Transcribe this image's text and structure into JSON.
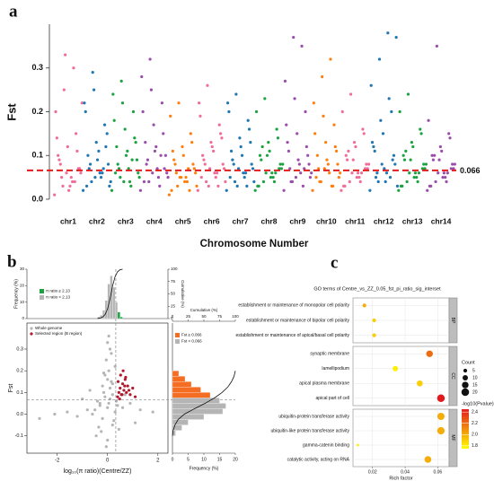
{
  "chart_data": [
    {
      "type": "manhattan",
      "panel": "a",
      "y_label": "Fst",
      "x_label": "Chromosome Number",
      "ylim": [
        0,
        0.4
      ],
      "yticks": [
        {
          "value": 0,
          "label": "0.0"
        },
        0.1,
        0.2,
        0.3
      ],
      "threshold": 0.066,
      "threshold_color": "#e31a1c",
      "series": [
        {
          "name": "chr1",
          "color": "#f06c9b",
          "values": [
            0.01,
            0.03,
            0.05,
            0.07,
            0.09,
            0.12,
            0.15,
            0.2,
            0.25,
            0.04,
            0.06,
            0.08,
            0.02,
            0.11,
            0.14,
            0.33,
            0.3,
            0.22,
            0.05,
            0.03,
            0.07,
            0.1,
            0.06,
            0.04
          ]
        },
        {
          "name": "chr2",
          "color": "#1f78b4",
          "values": [
            0.02,
            0.04,
            0.06,
            0.08,
            0.1,
            0.13,
            0.17,
            0.22,
            0.29,
            0.05,
            0.03,
            0.07,
            0.09,
            0.12,
            0.2,
            0.25,
            0.06,
            0.04,
            0.08,
            0.11,
            0.15,
            0.03,
            0.05,
            0.07
          ]
        },
        {
          "name": "chr3",
          "color": "#1aa340",
          "values": [
            0.02,
            0.05,
            0.07,
            0.09,
            0.12,
            0.16,
            0.2,
            0.24,
            0.27,
            0.04,
            0.06,
            0.08,
            0.1,
            0.14,
            0.18,
            0.22,
            0.03,
            0.05,
            0.07,
            0.11,
            0.13,
            0.06,
            0.04,
            0.09
          ]
        },
        {
          "name": "chr4",
          "color": "#9b4dab",
          "values": [
            0.02,
            0.04,
            0.07,
            0.1,
            0.13,
            0.17,
            0.22,
            0.28,
            0.32,
            0.05,
            0.06,
            0.08,
            0.11,
            0.15,
            0.2,
            0.25,
            0.03,
            0.05,
            0.09,
            0.12,
            0.07,
            0.04,
            0.06,
            0.1
          ]
        },
        {
          "name": "chr5",
          "color": "#ff7f0e",
          "values": [
            0.01,
            0.03,
            0.05,
            0.07,
            0.09,
            0.12,
            0.15,
            0.19,
            0.22,
            0.04,
            0.06,
            0.08,
            0.1,
            0.13,
            0.02,
            0.05,
            0.07,
            0.03,
            0.06,
            0.04,
            0.08,
            0.11,
            0.05,
            0.02
          ]
        },
        {
          "name": "chr6",
          "color": "#f06c9b",
          "values": [
            0.02,
            0.04,
            0.06,
            0.08,
            0.1,
            0.13,
            0.17,
            0.22,
            0.26,
            0.05,
            0.07,
            0.09,
            0.12,
            0.15,
            0.19,
            0.03,
            0.06,
            0.04,
            0.08,
            0.11,
            0.14,
            0.05,
            0.07,
            0.03
          ]
        },
        {
          "name": "chr7",
          "color": "#1f78b4",
          "values": [
            0.02,
            0.04,
            0.06,
            0.08,
            0.11,
            0.14,
            0.18,
            0.22,
            0.24,
            0.05,
            0.07,
            0.09,
            0.12,
            0.16,
            0.2,
            0.03,
            0.06,
            0.04,
            0.08,
            0.1,
            0.13,
            0.05,
            0.07,
            0.03
          ]
        },
        {
          "name": "chr8",
          "color": "#1aa340",
          "values": [
            0.02,
            0.04,
            0.06,
            0.08,
            0.1,
            0.13,
            0.16,
            0.2,
            0.23,
            0.05,
            0.07,
            0.09,
            0.11,
            0.14,
            0.03,
            0.06,
            0.04,
            0.08,
            0.12,
            0.05,
            0.07,
            0.03,
            0.1,
            0.06
          ]
        },
        {
          "name": "chr9",
          "color": "#9b4dab",
          "values": [
            0.02,
            0.04,
            0.06,
            0.08,
            0.11,
            0.15,
            0.2,
            0.27,
            0.37,
            0.35,
            0.05,
            0.07,
            0.09,
            0.12,
            0.17,
            0.23,
            0.03,
            0.06,
            0.04,
            0.08,
            0.1,
            0.13,
            0.05,
            0.07
          ]
        },
        {
          "name": "chr10",
          "color": "#ff7f0e",
          "values": [
            0.02,
            0.04,
            0.06,
            0.08,
            0.1,
            0.13,
            0.17,
            0.22,
            0.28,
            0.32,
            0.05,
            0.07,
            0.09,
            0.12,
            0.15,
            0.19,
            0.03,
            0.06,
            0.04,
            0.08,
            0.11,
            0.05,
            0.07,
            0.03
          ]
        },
        {
          "name": "chr11",
          "color": "#f06c9b",
          "values": [
            0.02,
            0.04,
            0.06,
            0.08,
            0.1,
            0.13,
            0.16,
            0.2,
            0.24,
            0.05,
            0.07,
            0.09,
            0.12,
            0.15,
            0.03,
            0.06,
            0.04,
            0.08,
            0.11,
            0.05,
            0.07,
            0.03,
            0.09,
            0.06
          ]
        },
        {
          "name": "chr12",
          "color": "#1f78b4",
          "values": [
            0.02,
            0.04,
            0.06,
            0.08,
            0.11,
            0.15,
            0.2,
            0.26,
            0.32,
            0.38,
            0.37,
            0.05,
            0.07,
            0.09,
            0.13,
            0.18,
            0.23,
            0.03,
            0.06,
            0.04,
            0.1,
            0.12,
            0.08,
            0.05
          ]
        },
        {
          "name": "chr13",
          "color": "#1aa340",
          "values": [
            0.02,
            0.04,
            0.06,
            0.08,
            0.1,
            0.13,
            0.16,
            0.2,
            0.24,
            0.05,
            0.07,
            0.09,
            0.12,
            0.15,
            0.03,
            0.06,
            0.04,
            0.08,
            0.11,
            0.05,
            0.07,
            0.03,
            0.09,
            0.06
          ]
        },
        {
          "name": "chr14",
          "color": "#9b4dab",
          "values": [
            0.02,
            0.04,
            0.06,
            0.08,
            0.1,
            0.12,
            0.15,
            0.18,
            0.35,
            0.05,
            0.07,
            0.09,
            0.11,
            0.14,
            0.03,
            0.06,
            0.04,
            0.08,
            0.1,
            0.05,
            0.07,
            0.03,
            0.09,
            0.06
          ]
        }
      ]
    },
    {
      "type": "scatter",
      "panel": "b",
      "x_label": "log₁₀(π ratio)(Centre/ZZ)",
      "y_label": "Fst",
      "xlim": [
        -3.2,
        2.4
      ],
      "xticks": [
        -2,
        0,
        2
      ],
      "ylim": [
        -0.18,
        0.42
      ],
      "yticks": [
        -0.1,
        {
          "value": 0,
          "label": "0.0"
        },
        0.1,
        0.2,
        0.3
      ],
      "log_pi_threshold": 0.328,
      "fst_threshold": 0.066,
      "series": [
        {
          "name": "Whole genome",
          "color": "#b5b5b5",
          "x": [
            -0.5,
            -0.3,
            -0.2,
            -0.1,
            0,
            0.1,
            0.2,
            0.3,
            -0.4,
            0.15,
            -0.25,
            0.05,
            -0.6,
            0.4,
            -0.15,
            0.25,
            -0.05,
            0.35,
            -0.35,
            0.1,
            -0.8,
            0.6,
            -1.2,
            0.9,
            -1.6,
            1.3,
            -2.1,
            1.8,
            -2.7,
            0,
            -0.1,
            0.2,
            -0.2,
            0.05,
            0.3,
            -0.3,
            0.1,
            -0.45,
            0.45,
            0,
            -0.05,
            0.15,
            -0.7,
            0.7,
            -1,
            1.1,
            0.2,
            -0.15,
            0.05,
            0
          ],
          "values": [
            0.02,
            0.05,
            -0.02,
            0.08,
            0.03,
            0.12,
            -0.05,
            0.01,
            0.06,
            0.15,
            -0.08,
            0.2,
            0,
            0.04,
            0.1,
            -0.03,
            0.25,
            0.06,
            -0.06,
            0.3,
            0.02,
            0.03,
            -0.01,
            0.05,
            0.01,
            0.02,
            0,
            0.01,
            -0.02,
            -0.12,
            0.18,
            0.09,
            0.13,
            0.36,
            0.22,
            0.04,
            0.07,
            -0.1,
            -0.07,
            0.16,
            -0.15,
            0.28,
            0.11,
            0.09,
            0.07,
            -0.04,
            0.14,
            0.19,
            0.05,
            0.33
          ]
        },
        {
          "name": "Selected region (B region)",
          "color": "#b2182b",
          "x": [
            0.4,
            0.45,
            0.5,
            0.55,
            0.6,
            0.65,
            0.7,
            0.75,
            0.8,
            0.9,
            1,
            1.1,
            0.42,
            0.52,
            0.62,
            0.72,
            0.85,
            0.48,
            0.58,
            0.68
          ],
          "values": [
            0.08,
            0.1,
            0.12,
            0.09,
            0.14,
            0.11,
            0.16,
            0.1,
            0.13,
            0.09,
            0.12,
            0.08,
            0.15,
            0.18,
            0.2,
            0.17,
            0.11,
            0.07,
            0.09,
            0.13
          ]
        }
      ],
      "top_hist": {
        "y_label": "Frequency (%)",
        "cumulative_label": "Cumulative (%)",
        "ylim": [
          0,
          30
        ],
        "yticks": [
          0,
          10,
          20,
          30
        ],
        "cumulative_lim": [
          0,
          100
        ],
        "cumulative_ticks": [
          0,
          25,
          50,
          75,
          100
        ],
        "bins": [
          -0.4,
          -0.3,
          -0.2,
          -0.1,
          0,
          0.1,
          0.2,
          0.3,
          0.4,
          0.5,
          0.6
        ],
        "values": [
          1,
          2,
          5,
          11,
          21,
          26,
          19,
          10,
          4,
          1
        ],
        "cumulative": [
          0,
          1,
          3,
          8,
          19,
          40,
          66,
          85,
          95,
          99,
          100
        ],
        "legend": [
          {
            "name": "π ratio ≥ 2.13",
            "color": "#1aa340"
          },
          {
            "name": "π ratio < 2.13",
            "color": "#b5b5b5"
          }
        ]
      },
      "right_hist": {
        "x_label": "Frequency (%)",
        "cumulative_label": "Cumulative (%)",
        "xlim": [
          0,
          20
        ],
        "xticks": [
          0,
          5,
          10,
          15,
          20
        ],
        "cumulative_lim": [
          0,
          100
        ],
        "cumulative_ticks": [
          0,
          25,
          50,
          75,
          100
        ],
        "bins": [
          -0.1,
          -0.075,
          -0.05,
          -0.025,
          0,
          0.025,
          0.05,
          0.075,
          0.1,
          0.125,
          0.15,
          0.175,
          0.2
        ],
        "values": [
          1,
          3,
          5,
          10,
          16,
          17,
          15,
          12,
          9,
          6,
          4,
          2
        ],
        "cumulative": [
          0,
          1,
          4,
          9,
          19,
          35,
          52,
          67,
          79,
          88,
          94,
          98,
          100
        ],
        "legend": [
          {
            "name": "Fst ≥ 0.066",
            "color": "#f46d22"
          },
          {
            "name": "Fst < 0.066",
            "color": "#b5b5b5"
          }
        ]
      }
    },
    {
      "type": "dot",
      "panel": "c",
      "title": "GO terms of Centre_vs_ZZ_0.05_fst_pi_ratio_sig_interset",
      "x_label": "Rich factor",
      "xlim": [
        0.008,
        0.067
      ],
      "xticks": [
        0.02,
        0.04,
        0.06
      ],
      "size_label": "Count",
      "size_ticks": [
        5,
        10,
        15,
        20
      ],
      "color_label": "-log10(Pvalue)",
      "colorlim": [
        1.75,
        2.45
      ],
      "color_ticks": [
        {
          "value": 1.8,
          "label": "1.8"
        },
        {
          "value": 2,
          "label": "2.0"
        },
        {
          "value": 2.2,
          "label": "2.2"
        },
        {
          "value": 2.4,
          "label": "2.4"
        }
      ],
      "color_low": "#ffff00",
      "color_high": "#e31a1c",
      "groups": [
        {
          "name": "BP",
          "terms": [
            "establishment or maintenance of monopolar cell polarity",
            "establishment or maintenance of bipolar cell polarity",
            "establishment or maintenance of apical/basal cell polarity"
          ],
          "rich_factor": [
            0.015,
            0.021,
            0.021
          ],
          "count": [
            5,
            5,
            5
          ],
          "neglog10p": [
            2,
            1.9,
            1.9
          ]
        },
        {
          "name": "CC",
          "terms": [
            "synaptic membrane",
            "lamellipodium",
            "apical plasma membrane",
            "apical part of cell"
          ],
          "rich_factor": [
            0.055,
            0.034,
            0.049,
            0.062
          ],
          "count": [
            15,
            10,
            12,
            20
          ],
          "neglog10p": [
            2.2,
            1.8,
            1.9,
            2.45
          ]
        },
        {
          "name": "MF",
          "terms": [
            "ubiquitin-protein transferase activity",
            "ubiquitin-like protein transferase activity",
            "gamma-catenin binding",
            "catalytic activity, acting on RNA"
          ],
          "rich_factor": [
            0.062,
            0.062,
            0.011,
            0.054
          ],
          "count": [
            18,
            19,
            2,
            16
          ],
          "neglog10p": [
            2,
            2,
            1.8,
            2
          ]
        }
      ]
    }
  ]
}
